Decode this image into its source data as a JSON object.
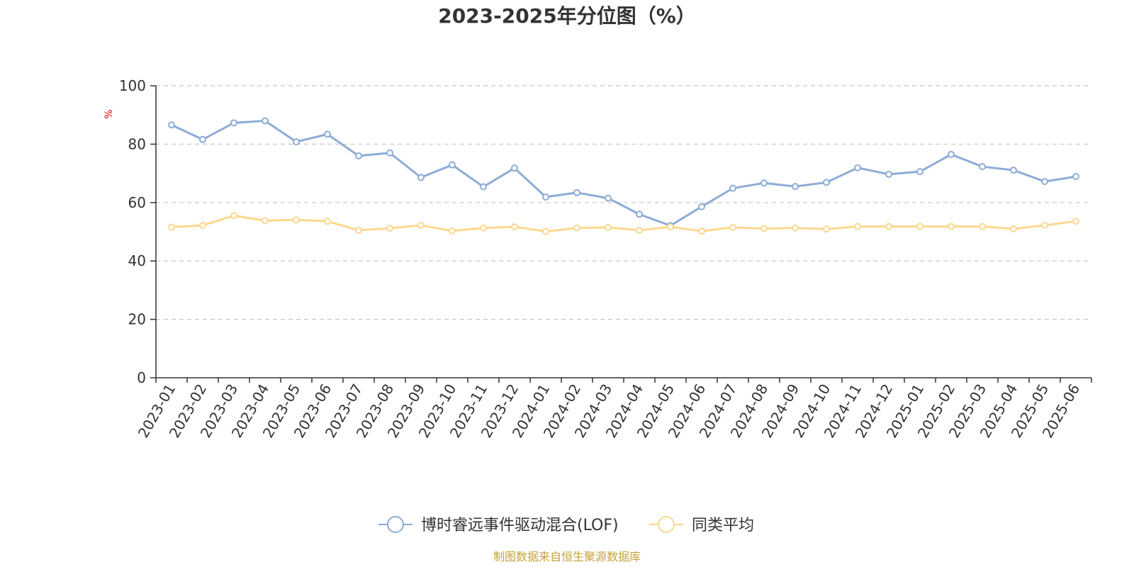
{
  "chart_data": {
    "type": "line",
    "title": "2023-2025年分位图（%）",
    "ylabel": "%",
    "xlabel": "",
    "ylim": [
      0,
      100
    ],
    "yticks": [
      0,
      20,
      40,
      60,
      80,
      100
    ],
    "grid": true,
    "legend_position": "bottom-center",
    "categories": [
      "2023-01",
      "2023-02",
      "2023-03",
      "2023-04",
      "2023-05",
      "2023-06",
      "2023-07",
      "2023-08",
      "2023-09",
      "2023-10",
      "2023-11",
      "2023-12",
      "2024-01",
      "2024-02",
      "2024-03",
      "2024-04",
      "2024-05",
      "2024-06",
      "2024-07",
      "2024-08",
      "2024-09",
      "2024-10",
      "2024-11",
      "2024-12",
      "2025-01",
      "2025-02",
      "2025-03",
      "2025-04",
      "2025-05",
      "2025-06"
    ],
    "series": [
      {
        "name": "博时睿远事件驱动混合(LOF)",
        "color": "#8eacd6",
        "values": [
          86.6,
          81.6,
          87.3,
          88.0,
          80.8,
          83.4,
          76.0,
          77.0,
          68.6,
          72.9,
          65.4,
          71.8,
          61.9,
          63.4,
          61.5,
          56.0,
          52.1,
          58.6,
          64.9,
          66.7,
          65.5,
          66.9,
          71.9,
          69.7,
          70.6,
          76.5,
          72.3,
          71.1,
          67.2,
          68.9
        ]
      },
      {
        "name": "同类平均",
        "color": "#fbd88f",
        "values": [
          51.6,
          52.2,
          55.5,
          53.8,
          54.1,
          53.6,
          50.5,
          51.2,
          52.2,
          50.3,
          51.3,
          51.7,
          50.1,
          51.3,
          51.5,
          50.5,
          51.7,
          50.2,
          51.5,
          51.1,
          51.3,
          50.9,
          51.8,
          51.8,
          51.8,
          51.8,
          51.8,
          51.0,
          52.2,
          53.6
        ]
      }
    ],
    "source": "制图数据来自恒生聚源数据库"
  }
}
